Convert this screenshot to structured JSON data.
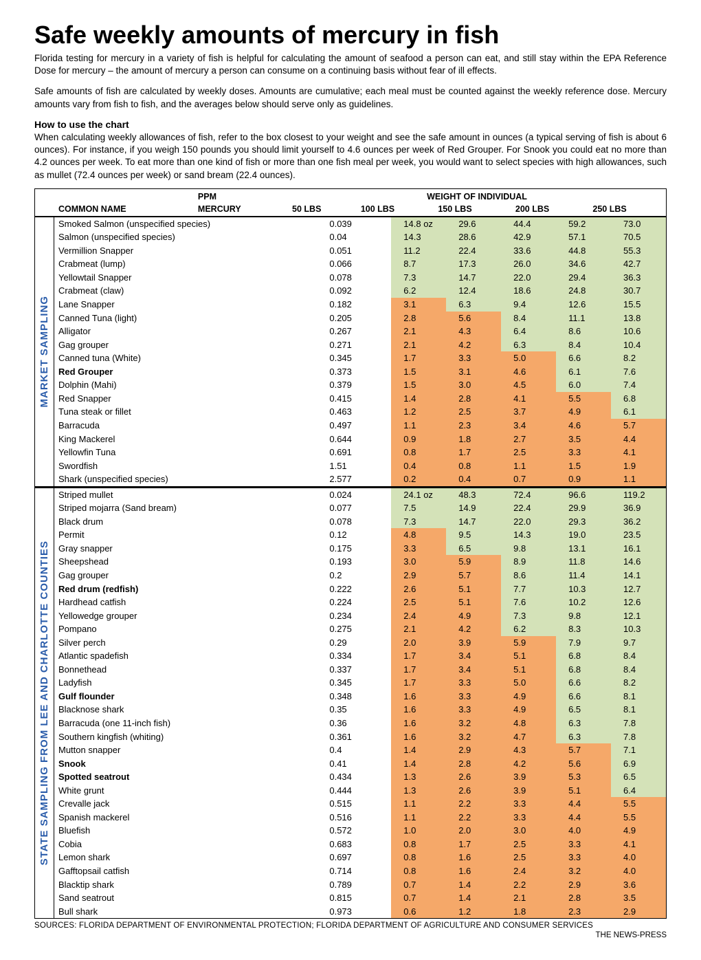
{
  "title": "Safe weekly amounts of mercury in fish",
  "intro_p1": "Florida testing for mercury in a variety of fish is helpful for calculating the amount of seafood a person can eat, and still stay within the EPA Reference Dose for mercury – the amount of mercury a person can consume on a continuing basis without fear of ill effects.",
  "intro_p2": "Safe amounts of fish are calculated by weekly doses. Amounts are cumulative; each meal must be counted against the weekly reference dose. Mercury amounts vary from fish to fish, and the averages below should serve only as guidelines.",
  "howto_title": "How to use the chart",
  "howto_text": "When calculating weekly allowances of fish, refer to the box closest to your weight and see the safe amount in ounces (a typical serving of fish is about 6 ounces). For instance, if you weigh 150 pounds you should limit yourself to 4.6 ounces per week of Red Grouper. For Snook you could eat no more than 4.2 ounces per week. To eat more than one kind of fish or more than one fish meal per week, you would want to select species with high allowances, such as mullet (72.4 ounces per week) or sand bream (22.4 ounces).",
  "header": {
    "top": {
      "ppm": "PPM",
      "weight": "WEIGHT OF INDIVIDUAL"
    },
    "bottom": {
      "name": "COMMON NAME",
      "mercury": "MERCURY",
      "w50": "50 LBS",
      "w100": "100 LBS",
      "w150": "150 LBS",
      "w200": "200 LBS",
      "w250": "250 LBS"
    }
  },
  "colors": {
    "green": "#d4e2b8",
    "orange": "#f5a869",
    "side_label": "#2a5caa"
  },
  "sections": [
    {
      "label": "MARKET SAMPLING",
      "rows": [
        {
          "name": "Smoked Salmon (unspecified species)",
          "ppm": "0.039",
          "v": [
            "14.8 oz",
            "29.6",
            "44.4",
            "59.2",
            "73.0"
          ],
          "c": [
            "g",
            "g",
            "g",
            "g",
            "g"
          ]
        },
        {
          "name": "Salmon (unspecified species)",
          "ppm": "0.04",
          "v": [
            "14.3",
            "28.6",
            "42.9",
            "57.1",
            "70.5"
          ],
          "c": [
            "g",
            "g",
            "g",
            "g",
            "g"
          ]
        },
        {
          "name": "Vermillion Snapper",
          "ppm": "0.051",
          "v": [
            "11.2",
            "22.4",
            "33.6",
            "44.8",
            "55.3"
          ],
          "c": [
            "g",
            "g",
            "g",
            "g",
            "g"
          ]
        },
        {
          "name": "Crabmeat (lump)",
          "ppm": "0.066",
          "v": [
            "8.7",
            "17.3",
            "26.0",
            "34.6",
            "42.7"
          ],
          "c": [
            "g",
            "g",
            "g",
            "g",
            "g"
          ]
        },
        {
          "name": "Yellowtail Snapper",
          "ppm": "0.078",
          "v": [
            "7.3",
            "14.7",
            "22.0",
            "29.4",
            "36.3"
          ],
          "c": [
            "g",
            "g",
            "g",
            "g",
            "g"
          ]
        },
        {
          "name": "Crabmeat (claw)",
          "ppm": "0.092",
          "v": [
            "6.2",
            "12.4",
            "18.6",
            "24.8",
            "30.7"
          ],
          "c": [
            "g",
            "g",
            "g",
            "g",
            "g"
          ]
        },
        {
          "name": "Lane Snapper",
          "ppm": "0.182",
          "v": [
            "3.1",
            "6.3",
            "9.4",
            "12.6",
            "15.5"
          ],
          "c": [
            "o",
            "g",
            "g",
            "g",
            "g"
          ]
        },
        {
          "name": "Canned Tuna (light)",
          "ppm": "0.205",
          "v": [
            "2.8",
            "5.6",
            "8.4",
            "11.1",
            "13.8"
          ],
          "c": [
            "o",
            "o",
            "g",
            "g",
            "g"
          ]
        },
        {
          "name": "Alligator",
          "ppm": "0.267",
          "v": [
            "2.1",
            "4.3",
            "6.4",
            "8.6",
            "10.6"
          ],
          "c": [
            "o",
            "o",
            "g",
            "g",
            "g"
          ]
        },
        {
          "name": "Gag grouper",
          "ppm": "0.271",
          "v": [
            "2.1",
            "4.2",
            "6.3",
            "8.4",
            "10.4"
          ],
          "c": [
            "o",
            "o",
            "g",
            "g",
            "g"
          ]
        },
        {
          "name": "Canned tuna (White)",
          "ppm": "0.345",
          "v": [
            "1.7",
            "3.3",
            "5.0",
            "6.6",
            "8.2"
          ],
          "c": [
            "o",
            "o",
            "o",
            "g",
            "g"
          ]
        },
        {
          "name": "Red Grouper",
          "ppm": "0.373",
          "v": [
            "1.5",
            "3.1",
            "4.6",
            "6.1",
            "7.6"
          ],
          "c": [
            "o",
            "o",
            "o",
            "g",
            "g"
          ],
          "bold": true
        },
        {
          "name": "Dolphin (Mahi)",
          "ppm": "0.379",
          "v": [
            "1.5",
            "3.0",
            "4.5",
            "6.0",
            "7.4"
          ],
          "c": [
            "o",
            "o",
            "o",
            "g",
            "g"
          ]
        },
        {
          "name": "Red Snapper",
          "ppm": "0.415",
          "v": [
            "1.4",
            "2.8",
            "4.1",
            "5.5",
            "6.8"
          ],
          "c": [
            "o",
            "o",
            "o",
            "o",
            "g"
          ]
        },
        {
          "name": "Tuna steak or fillet",
          "ppm": "0.463",
          "v": [
            "1.2",
            "2.5",
            "3.7",
            "4.9",
            "6.1"
          ],
          "c": [
            "o",
            "o",
            "o",
            "o",
            "g"
          ]
        },
        {
          "name": "Barracuda",
          "ppm": "0.497",
          "v": [
            "1.1",
            "2.3",
            "3.4",
            "4.6",
            "5.7"
          ],
          "c": [
            "o",
            "o",
            "o",
            "o",
            "o"
          ]
        },
        {
          "name": "King Mackerel",
          "ppm": "0.644",
          "v": [
            "0.9",
            "1.8",
            "2.7",
            "3.5",
            "4.4"
          ],
          "c": [
            "o",
            "o",
            "o",
            "o",
            "o"
          ]
        },
        {
          "name": "Yellowfin Tuna",
          "ppm": "0.691",
          "v": [
            "0.8",
            "1.7",
            "2.5",
            "3.3",
            "4.1"
          ],
          "c": [
            "o",
            "o",
            "o",
            "o",
            "o"
          ]
        },
        {
          "name": "Swordfish",
          "ppm": "1.51",
          "v": [
            "0.4",
            "0.8",
            "1.1",
            "1.5",
            "1.9"
          ],
          "c": [
            "o",
            "o",
            "o",
            "o",
            "o"
          ]
        },
        {
          "name": "Shark (unspecified species)",
          "ppm": "2.577",
          "v": [
            "0.2",
            "0.4",
            "0.7",
            "0.9",
            "1.1"
          ],
          "c": [
            "o",
            "o",
            "o",
            "o",
            "o"
          ]
        }
      ]
    },
    {
      "label": "STATE SAMPLING FROM LEE AND CHARLOTTE COUNTIES",
      "rows": [
        {
          "name": "Striped mullet",
          "ppm": "0.024",
          "v": [
            "24.1 oz",
            "48.3",
            "72.4",
            "96.6",
            "119.2"
          ],
          "c": [
            "g",
            "g",
            "g",
            "g",
            "g"
          ]
        },
        {
          "name": "Striped mojarra (Sand bream)",
          "ppm": "0.077",
          "v": [
            "7.5",
            "14.9",
            "22.4",
            "29.9",
            "36.9"
          ],
          "c": [
            "g",
            "g",
            "g",
            "g",
            "g"
          ]
        },
        {
          "name": "Black drum",
          "ppm": "0.078",
          "v": [
            "7.3",
            "14.7",
            "22.0",
            "29.3",
            "36.2"
          ],
          "c": [
            "g",
            "g",
            "g",
            "g",
            "g"
          ]
        },
        {
          "name": "Permit",
          "ppm": "0.12",
          "v": [
            "4.8",
            "9.5",
            "14.3",
            "19.0",
            "23.5"
          ],
          "c": [
            "o",
            "g",
            "g",
            "g",
            "g"
          ]
        },
        {
          "name": "Gray snapper",
          "ppm": "0.175",
          "v": [
            "3.3",
            "6.5",
            "9.8",
            "13.1",
            "16.1"
          ],
          "c": [
            "o",
            "g",
            "g",
            "g",
            "g"
          ]
        },
        {
          "name": "Sheepshead",
          "ppm": "0.193",
          "v": [
            "3.0",
            "5.9",
            "8.9",
            "11.8",
            "14.6"
          ],
          "c": [
            "o",
            "o",
            "g",
            "g",
            "g"
          ]
        },
        {
          "name": "Gag grouper",
          "ppm": "0.2",
          "v": [
            "2.9",
            "5.7",
            "8.6",
            "11.4",
            "14.1"
          ],
          "c": [
            "o",
            "o",
            "g",
            "g",
            "g"
          ]
        },
        {
          "name": "Red drum (redfish)",
          "ppm": "0.222",
          "v": [
            "2.6",
            "5.1",
            "7.7",
            "10.3",
            "12.7"
          ],
          "c": [
            "o",
            "o",
            "g",
            "g",
            "g"
          ],
          "bold": true
        },
        {
          "name": "Hardhead catfish",
          "ppm": "0.224",
          "v": [
            "2.5",
            "5.1",
            "7.6",
            "10.2",
            "12.6"
          ],
          "c": [
            "o",
            "o",
            "g",
            "g",
            "g"
          ]
        },
        {
          "name": "Yellowedge grouper",
          "ppm": "0.234",
          "v": [
            "2.4",
            "4.9",
            "7.3",
            "9.8",
            "12.1"
          ],
          "c": [
            "o",
            "o",
            "g",
            "g",
            "g"
          ]
        },
        {
          "name": "Pompano",
          "ppm": "0.275",
          "v": [
            "2.1",
            "4.2",
            "6.2",
            "8.3",
            "10.3"
          ],
          "c": [
            "o",
            "o",
            "g",
            "g",
            "g"
          ]
        },
        {
          "name": "Silver perch",
          "ppm": "0.29",
          "v": [
            "2.0",
            "3.9",
            "5.9",
            "7.9",
            "9.7"
          ],
          "c": [
            "o",
            "o",
            "o",
            "g",
            "g"
          ]
        },
        {
          "name": "Atlantic spadefish",
          "ppm": "0.334",
          "v": [
            "1.7",
            "3.4",
            "5.1",
            "6.8",
            "8.4"
          ],
          "c": [
            "o",
            "o",
            "o",
            "g",
            "g"
          ]
        },
        {
          "name": "Bonnethead",
          "ppm": "0.337",
          "v": [
            "1.7",
            "3.4",
            "5.1",
            "6.8",
            "8.4"
          ],
          "c": [
            "o",
            "o",
            "o",
            "g",
            "g"
          ]
        },
        {
          "name": "Ladyfish",
          "ppm": "0.345",
          "v": [
            "1.7",
            "3.3",
            "5.0",
            "6.6",
            "8.2"
          ],
          "c": [
            "o",
            "o",
            "o",
            "g",
            "g"
          ]
        },
        {
          "name": "Gulf flounder",
          "ppm": "0.348",
          "v": [
            "1.6",
            "3.3",
            "4.9",
            "6.6",
            "8.1"
          ],
          "c": [
            "o",
            "o",
            "o",
            "g",
            "g"
          ],
          "bold": true
        },
        {
          "name": "Blacknose shark",
          "ppm": "0.35",
          "v": [
            "1.6",
            "3.3",
            "4.9",
            "6.5",
            "8.1"
          ],
          "c": [
            "o",
            "o",
            "o",
            "g",
            "g"
          ]
        },
        {
          "name": "Barracuda (one 11-inch fish)",
          "ppm": "0.36",
          "v": [
            "1.6",
            "3.2",
            "4.8",
            "6.3",
            "7.8"
          ],
          "c": [
            "o",
            "o",
            "o",
            "g",
            "g"
          ]
        },
        {
          "name": "Southern kingfish (whiting)",
          "ppm": "0.361",
          "v": [
            "1.6",
            "3.2",
            "4.7",
            "6.3",
            "7.8"
          ],
          "c": [
            "o",
            "o",
            "o",
            "g",
            "g"
          ]
        },
        {
          "name": "Mutton snapper",
          "ppm": "0.4",
          "v": [
            "1.4",
            "2.9",
            "4.3",
            "5.7",
            "7.1"
          ],
          "c": [
            "o",
            "o",
            "o",
            "o",
            "g"
          ]
        },
        {
          "name": "Snook",
          "ppm": "0.41",
          "v": [
            "1.4",
            "2.8",
            "4.2",
            "5.6",
            "6.9"
          ],
          "c": [
            "o",
            "o",
            "o",
            "o",
            "g"
          ],
          "bold": true
        },
        {
          "name": "Spotted seatrout",
          "ppm": "0.434",
          "v": [
            "1.3",
            "2.6",
            "3.9",
            "5.3",
            "6.5"
          ],
          "c": [
            "o",
            "o",
            "o",
            "o",
            "g"
          ],
          "bold": true
        },
        {
          "name": "White grunt",
          "ppm": "0.444",
          "v": [
            "1.3",
            "2.6",
            "3.9",
            "5.1",
            "6.4"
          ],
          "c": [
            "o",
            "o",
            "o",
            "o",
            "g"
          ]
        },
        {
          "name": "Crevalle jack",
          "ppm": "0.515",
          "v": [
            "1.1",
            "2.2",
            "3.3",
            "4.4",
            "5.5"
          ],
          "c": [
            "o",
            "o",
            "o",
            "o",
            "o"
          ]
        },
        {
          "name": "Spanish mackerel",
          "ppm": "0.516",
          "v": [
            "1.1",
            "2.2",
            "3.3",
            "4.4",
            "5.5"
          ],
          "c": [
            "o",
            "o",
            "o",
            "o",
            "o"
          ]
        },
        {
          "name": "Bluefish",
          "ppm": "0.572",
          "v": [
            "1.0",
            "2.0",
            "3.0",
            "4.0",
            "4.9"
          ],
          "c": [
            "o",
            "o",
            "o",
            "o",
            "o"
          ]
        },
        {
          "name": "Cobia",
          "ppm": "0.683",
          "v": [
            "0.8",
            "1.7",
            "2.5",
            "3.3",
            "4.1"
          ],
          "c": [
            "o",
            "o",
            "o",
            "o",
            "o"
          ]
        },
        {
          "name": "Lemon shark",
          "ppm": "0.697",
          "v": [
            "0.8",
            "1.6",
            "2.5",
            "3.3",
            "4.0"
          ],
          "c": [
            "o",
            "o",
            "o",
            "o",
            "o"
          ]
        },
        {
          "name": "Gafftopsail catfish",
          "ppm": "0.714",
          "v": [
            "0.8",
            "1.6",
            "2.4",
            "3.2",
            "4.0"
          ],
          "c": [
            "o",
            "o",
            "o",
            "o",
            "o"
          ]
        },
        {
          "name": "Blacktip shark",
          "ppm": "0.789",
          "v": [
            "0.7",
            "1.4",
            "2.2",
            "2.9",
            "3.6"
          ],
          "c": [
            "o",
            "o",
            "o",
            "o",
            "o"
          ]
        },
        {
          "name": "Sand seatrout",
          "ppm": "0.815",
          "v": [
            "0.7",
            "1.4",
            "2.1",
            "2.8",
            "3.5"
          ],
          "c": [
            "o",
            "o",
            "o",
            "o",
            "o"
          ]
        },
        {
          "name": "Bull shark",
          "ppm": "0.973",
          "v": [
            "0.6",
            "1.2",
            "1.8",
            "2.3",
            "2.9"
          ],
          "c": [
            "o",
            "o",
            "o",
            "o",
            "o"
          ]
        }
      ]
    }
  ],
  "sources": "SOURCES: FLORIDA DEPARTMENT OF ENVIRONMENTAL PROTECTION; FLORIDA DEPARTMENT OF AGRICULTURE AND CONSUMER SERVICES",
  "credit": "THE NEWS-PRESS"
}
